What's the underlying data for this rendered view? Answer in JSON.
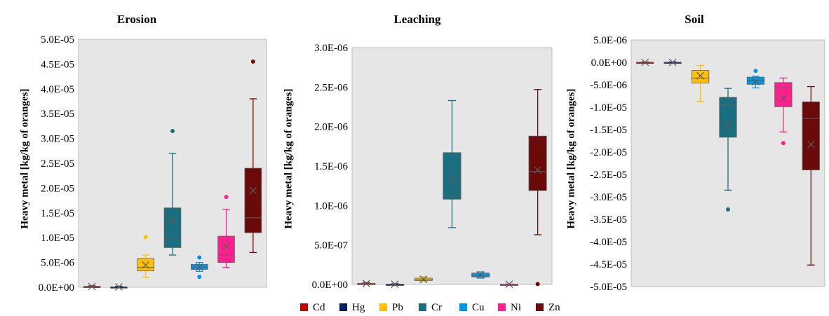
{
  "chart_data": [
    {
      "type": "box",
      "title": "Erosion",
      "ylabel": "Heavy metal [kg/kg of oranges]",
      "ylim": [
        0,
        5e-05
      ],
      "yticks": [
        0,
        5e-06,
        1e-05,
        1.5e-05,
        2e-05,
        2.5e-05,
        3e-05,
        3.5e-05,
        4e-05,
        4.5e-05,
        5e-05
      ],
      "ytick_labels": [
        "0.0E+00",
        "5.0E-06",
        "1.0E-05",
        "1.5E-05",
        "2.0E-05",
        "2.5E-05",
        "3.0E-05",
        "3.5E-05",
        "4.0E-05",
        "4.5E-05",
        "5.0E-05"
      ],
      "grid": false,
      "series": [
        {
          "name": "Cd",
          "min": 0,
          "q1": 0,
          "median": 1e-07,
          "q3": 2e-07,
          "max": 3e-07,
          "mean": 1.5e-07,
          "outliers": []
        },
        {
          "name": "Hg",
          "min": 0,
          "q1": 0,
          "median": 5e-08,
          "q3": 1e-07,
          "max": 2e-07,
          "mean": 8e-08,
          "outliers": []
        },
        {
          "name": "Pb",
          "min": 2e-06,
          "q1": 3.3e-06,
          "median": 4e-06,
          "q3": 5.8e-06,
          "max": 6.5e-06,
          "mean": 4.5e-06,
          "outliers": [
            1.01e-05
          ]
        },
        {
          "name": "Cr",
          "min": 6.5e-06,
          "q1": 8e-06,
          "median": 9.8e-06,
          "q3": 1.6e-05,
          "max": 2.7e-05,
          "mean": 1.35e-05,
          "outliers": [
            3.15e-05
          ]
        },
        {
          "name": "Cu",
          "min": 3.2e-06,
          "q1": 3.6e-06,
          "median": 4e-06,
          "q3": 4.6e-06,
          "max": 5e-06,
          "mean": 4.1e-06,
          "outliers": [
            6e-06,
            2.1e-06
          ]
        },
        {
          "name": "Ni",
          "min": 4e-06,
          "q1": 5e-06,
          "median": 6.5e-06,
          "q3": 1.03e-05,
          "max": 1.57e-05,
          "mean": 8.2e-06,
          "outliers": [
            1.82e-05
          ]
        },
        {
          "name": "Zn",
          "min": 7e-06,
          "q1": 1.1e-05,
          "median": 1.4e-05,
          "q3": 2.4e-05,
          "max": 3.8e-05,
          "mean": 1.95e-05,
          "outliers": [
            4.55e-05
          ]
        }
      ]
    },
    {
      "type": "box",
      "title": "Leaching",
      "ylabel": "Heavy metal [kg/kg of oranges]",
      "ylim": [
        0,
        3e-06
      ],
      "yticks": [
        0,
        5e-07,
        1e-06,
        1.5e-06,
        2e-06,
        2.5e-06,
        3e-06
      ],
      "ytick_labels": [
        "0.0E+00",
        "5.0E-07",
        "1.0E-06",
        "1.5E-06",
        "2.0E-06",
        "2.5E-06",
        "3.0E-06"
      ],
      "grid": false,
      "series": [
        {
          "name": "Cd",
          "min": 0,
          "q1": 5e-09,
          "median": 1e-08,
          "q3": 1.5e-08,
          "max": 2.5e-08,
          "mean": 1.2e-08,
          "outliers": []
        },
        {
          "name": "Hg",
          "min": 0,
          "q1": 0,
          "median": 2e-09,
          "q3": 4e-09,
          "max": 8e-09,
          "mean": 3e-09,
          "outliers": []
        },
        {
          "name": "Pb",
          "min": 4e-08,
          "q1": 5e-08,
          "median": 6e-08,
          "q3": 8e-08,
          "max": 1e-07,
          "mean": 6.5e-08,
          "outliers": []
        },
        {
          "name": "Cr",
          "min": 7.2e-07,
          "q1": 1.08e-06,
          "median": 1.12e-06,
          "q3": 1.67e-06,
          "max": 2.33e-06,
          "mean": 1.33e-06,
          "outliers": []
        },
        {
          "name": "Cu",
          "min": 8e-08,
          "q1": 9.5e-08,
          "median": 1.1e-07,
          "q3": 1.45e-07,
          "max": 1.6e-07,
          "mean": 1.2e-07,
          "outliers": []
        },
        {
          "name": "Ni",
          "min": 0,
          "q1": 0,
          "median": 2e-09,
          "q3": 4e-09,
          "max": 6e-09,
          "mean": 3e-09,
          "outliers": []
        },
        {
          "name": "Zn",
          "min": 6.3e-07,
          "q1": 1.19e-06,
          "median": 1.43e-06,
          "q3": 1.88e-06,
          "max": 2.47e-06,
          "mean": 1.45e-06,
          "outliers": [
            5e-09
          ]
        }
      ]
    },
    {
      "type": "box",
      "title": "Soil",
      "ylabel": "Heavy metal [kg/kg of oranges]",
      "ylim": [
        -5e-05,
        5e-06
      ],
      "yticks": [
        5e-06,
        0,
        -5e-06,
        -1e-05,
        -1.5e-05,
        -2e-05,
        -2.5e-05,
        -3e-05,
        -3.5e-05,
        -4e-05,
        -4.5e-05,
        -5e-05
      ],
      "ytick_labels": [
        "5.0E-06",
        "0.0E+00",
        "-5.0E-06",
        "-1.0E-05",
        "-1.5E-05",
        "-2.0E-05",
        "-2.5E-05",
        "-3.0E-05",
        "-3.5E-05",
        "-4.0E-05",
        "-4.5E-05",
        "-5.0E-05"
      ],
      "grid": false,
      "series": [
        {
          "name": "Cd",
          "min": -1e-07,
          "q1": -5e-08,
          "median": 0,
          "q3": 5e-08,
          "max": 1e-07,
          "mean": 0,
          "outliers": []
        },
        {
          "name": "Hg",
          "min": -1e-07,
          "q1": -5e-08,
          "median": 0,
          "q3": 5e-08,
          "max": 1e-07,
          "mean": 0,
          "outliers": []
        },
        {
          "name": "Pb",
          "min": -8.7e-06,
          "q1": -4.6e-06,
          "median": -3.5e-06,
          "q3": -1.8e-06,
          "max": -7e-07,
          "mean": -3e-06,
          "outliers": []
        },
        {
          "name": "Cr",
          "min": -2.85e-05,
          "q1": -1.67e-05,
          "median": -9.5e-06,
          "q3": -7.8e-06,
          "max": -5.8e-06,
          "mean": -1.4e-05,
          "outliers": [
            -3.28e-05
          ]
        },
        {
          "name": "Cu",
          "min": -5.7e-06,
          "q1": -4.9e-06,
          "median": -4e-06,
          "q3": -3.3e-06,
          "max": -3.1e-06,
          "mean": -4.3e-06,
          "outliers": [
            -1.9e-06
          ]
        },
        {
          "name": "Ni",
          "min": -1.55e-05,
          "q1": -9.9e-06,
          "median": -5.7e-06,
          "q3": -4.5e-06,
          "max": -3.5e-06,
          "mean": -8e-06,
          "outliers": [
            -1.8e-05
          ]
        },
        {
          "name": "Zn",
          "min": -4.52e-05,
          "q1": -2.4e-05,
          "median": -1.25e-05,
          "q3": -8.8e-06,
          "max": -5.4e-06,
          "mean": -1.83e-05,
          "outliers": []
        }
      ]
    }
  ],
  "legend": {
    "placement": "bottom",
    "items": [
      {
        "name": "Cd",
        "color": "#c00000"
      },
      {
        "name": "Hg",
        "color": "#002060"
      },
      {
        "name": "Pb",
        "color": "#ffc000"
      },
      {
        "name": "Cr",
        "color": "#1a6e80"
      },
      {
        "name": "Cu",
        "color": "#0096e6"
      },
      {
        "name": "Ni",
        "color": "#ff1f8e"
      },
      {
        "name": "Zn",
        "color": "#6b0a0a"
      }
    ]
  },
  "colors": {
    "plot_background": "#e6e6e6",
    "panel_background": "#ffffff",
    "box_border": "#5f5f5f",
    "Cd": "#c00000",
    "Hg": "#002060",
    "Pb": "#ffc000",
    "Cr": "#1a6e80",
    "Cu": "#0096e6",
    "Ni": "#ff1f8e",
    "Zn": "#6b0a0a"
  }
}
